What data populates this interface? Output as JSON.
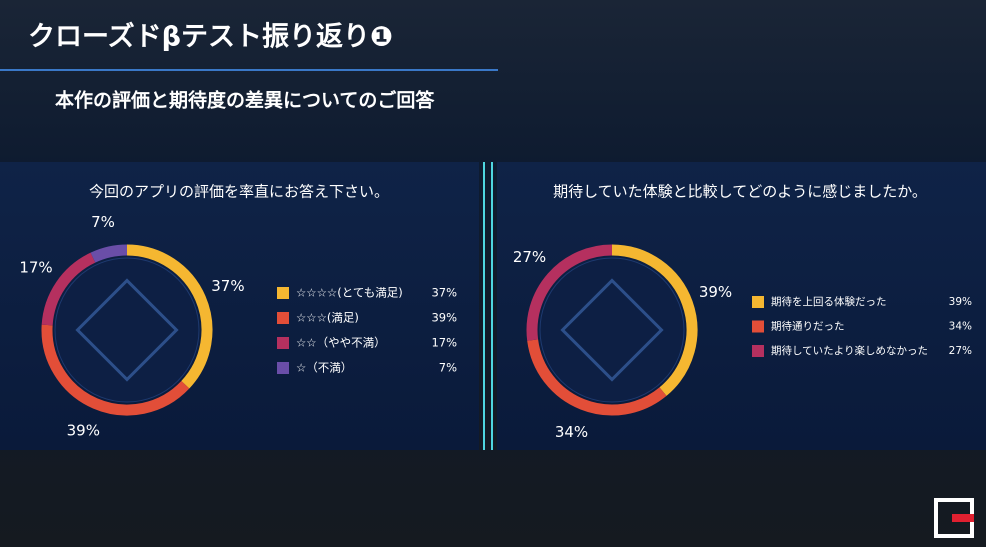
{
  "header": {
    "title": "クローズドβテスト振り返り❶",
    "subtitle": "本作の評価と期待度の差異についてのご回答"
  },
  "chart_data": [
    {
      "type": "pie",
      "title": "今回のアプリの評価を率直にお答え下さい。",
      "categories": [
        "☆☆☆☆(とても満足)",
        "☆☆☆(満足)",
        "☆☆（やや不満）",
        "☆（不満）"
      ],
      "values": [
        37,
        39,
        17,
        7
      ],
      "value_labels": [
        "37%",
        "39%",
        "17%",
        "7%"
      ],
      "colors": [
        "#f5b731",
        "#e24e38",
        "#b5305f",
        "#6a4ea8"
      ]
    },
    {
      "type": "pie",
      "title": "期待していた体験と比較してどのように感じましたか。",
      "categories": [
        "期待を上回る体験だった",
        "期待通りだった",
        "期待していたより楽しめなかった"
      ],
      "values": [
        39,
        34,
        27
      ],
      "value_labels": [
        "39%",
        "34%",
        "27%"
      ],
      "colors": [
        "#f5b731",
        "#e24e38",
        "#b5305f"
      ]
    }
  ]
}
